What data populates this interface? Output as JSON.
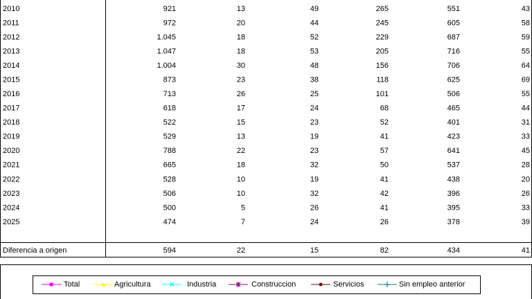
{
  "table": {
    "rows": [
      [
        "2010",
        "921",
        "13",
        "49",
        "265",
        "551",
        "43"
      ],
      [
        "2011",
        "972",
        "20",
        "44",
        "245",
        "605",
        "58"
      ],
      [
        "2012",
        "1.045",
        "18",
        "52",
        "229",
        "687",
        "59"
      ],
      [
        "2013",
        "1.047",
        "18",
        "53",
        "205",
        "716",
        "55"
      ],
      [
        "2014",
        "1.004",
        "30",
        "48",
        "156",
        "706",
        "64"
      ],
      [
        "2015",
        "873",
        "23",
        "38",
        "118",
        "625",
        "69"
      ],
      [
        "2016",
        "713",
        "26",
        "25",
        "101",
        "506",
        "55"
      ],
      [
        "2017",
        "618",
        "17",
        "24",
        "68",
        "465",
        "44"
      ],
      [
        "2018",
        "522",
        "15",
        "23",
        "52",
        "401",
        "31"
      ],
      [
        "2019",
        "529",
        "13",
        "19",
        "41",
        "423",
        "33"
      ],
      [
        "2020",
        "788",
        "22",
        "23",
        "57",
        "641",
        "45"
      ],
      [
        "2021",
        "665",
        "18",
        "32",
        "50",
        "537",
        "28"
      ],
      [
        "2022",
        "528",
        "10",
        "19",
        "41",
        "438",
        "20"
      ],
      [
        "2023",
        "506",
        "10",
        "32",
        "42",
        "396",
        "26"
      ],
      [
        "2024",
        "500",
        "5",
        "26",
        "41",
        "395",
        "33"
      ],
      [
        "2025",
        "474",
        "7",
        "24",
        "26",
        "378",
        "39"
      ]
    ],
    "footer": [
      "Diferencia a origen",
      "594",
      "22",
      "15",
      "82",
      "434",
      "41"
    ]
  },
  "legend": {
    "items": [
      {
        "label": "Total",
        "color": "#ff00ff"
      },
      {
        "label": "Agricultura",
        "color": "#ffff00"
      },
      {
        "label": "Industria",
        "color": "#00ffff"
      },
      {
        "label": "Construccion",
        "color": "#800080"
      },
      {
        "label": "Servicios",
        "color": "#800000"
      },
      {
        "label": "Sin empleo anterior",
        "color": "#008080"
      }
    ]
  }
}
